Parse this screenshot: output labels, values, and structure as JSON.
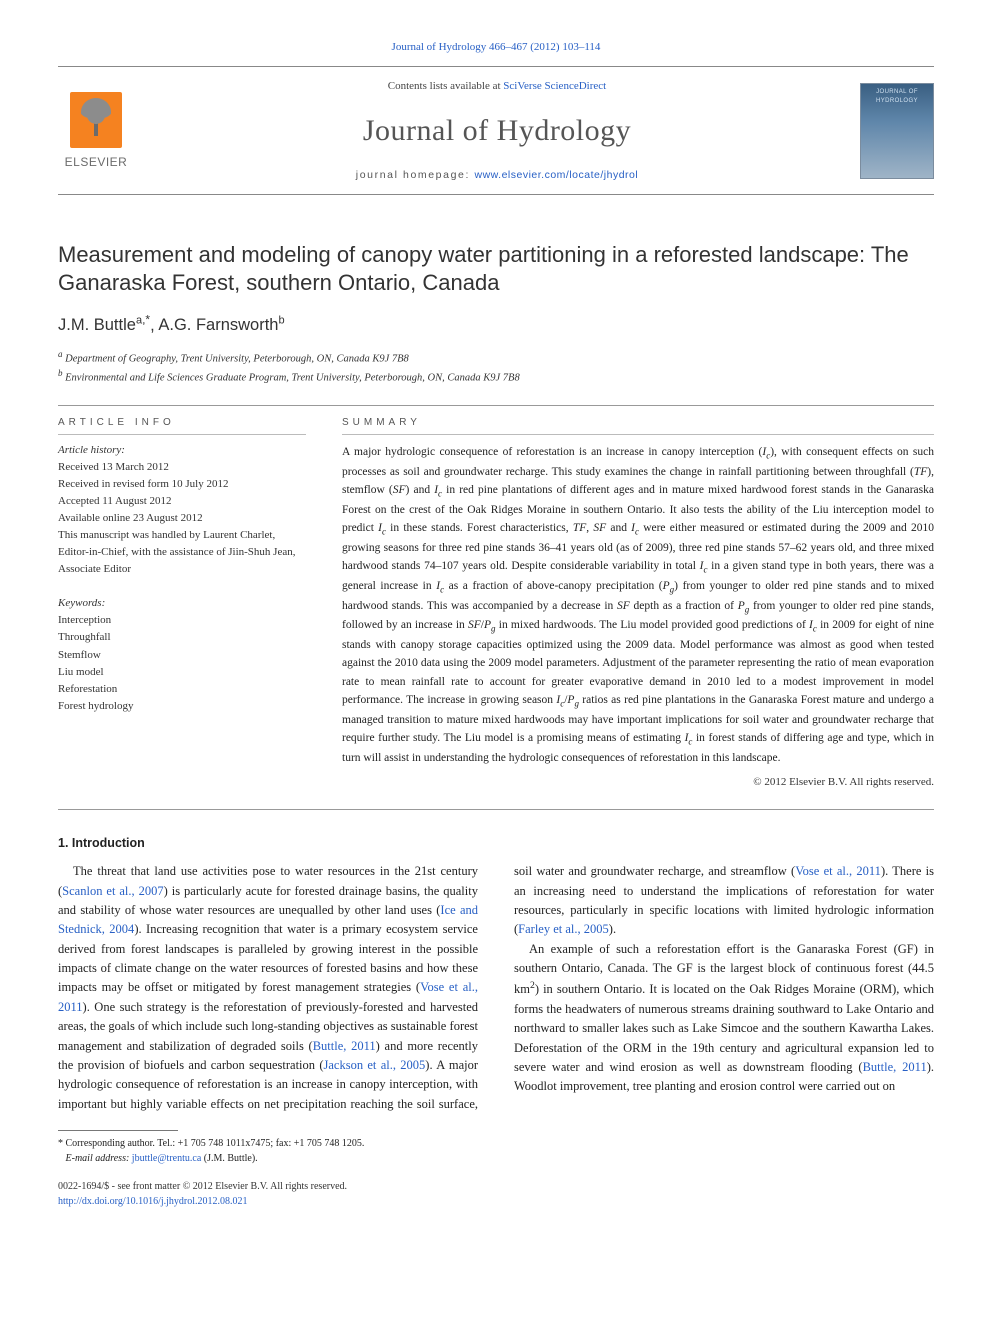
{
  "topLink": {
    "journal": "Journal of Hydrology",
    "citation": "466–467 (2012) 103–114"
  },
  "masthead": {
    "contentsPrefix": "Contents lists available at ",
    "contentsLinkText": "SciVerse ScienceDirect",
    "journalName": "Journal of Hydrology",
    "homepagePrefix": "journal homepage: ",
    "homepageUrl": "www.elsevier.com/locate/jhydrol",
    "publisherLogoWord": "ELSEVIER",
    "coverTitle": "JOURNAL OF HYDROLOGY"
  },
  "title": "Measurement and modeling of canopy water partitioning in a reforested landscape: The Ganaraska Forest, southern Ontario, Canada",
  "authors": [
    {
      "name": "J.M. Buttle",
      "aff": "a",
      "isCorresponding": true
    },
    {
      "name": "A.G. Farnsworth",
      "aff": "b",
      "isCorresponding": false
    }
  ],
  "correspondingMark": "*",
  "authorSeparator": ", ",
  "affiliations": [
    {
      "sup": "a",
      "text": "Department of Geography, Trent University, Peterborough, ON, Canada K9J 7B8"
    },
    {
      "sup": "b",
      "text": "Environmental and Life Sciences Graduate Program, Trent University, Peterborough, ON, Canada K9J 7B8"
    }
  ],
  "info": {
    "head": "ARTICLE INFO",
    "historyHead": "Article history:",
    "history": "Received 13 March 2012\nReceived in revised form 10 July 2012\nAccepted 11 August 2012\nAvailable online 23 August 2012\nThis manuscript was handled by Laurent Charlet, Editor-in-Chief, with the assistance of Jiin-Shuh Jean, Associate Editor",
    "kwHead": "Keywords:",
    "keywords": "Interception\nThroughfall\nStemflow\nLiu model\nReforestation\nForest hydrology"
  },
  "summary": {
    "head": "SUMMARY",
    "text": "A major hydrologic consequence of reforestation is an increase in canopy interception (I_c), with consequent effects on such processes as soil and groundwater recharge. This study examines the change in rainfall partitioning between throughfall (TF), stemflow (SF) and I_c in red pine plantations of different ages and in mature mixed hardwood forest stands in the Ganaraska Forest on the crest of the Oak Ridges Moraine in southern Ontario. It also tests the ability of the Liu interception model to predict I_c in these stands. Forest characteristics, TF, SF and I_c were either measured or estimated during the 2009 and 2010 growing seasons for three red pine stands 36–41 years old (as of 2009), three red pine stands 57–62 years old, and three mixed hardwood stands 74–107 years old. Despite considerable variability in total I_c in a given stand type in both years, there was a general increase in I_c as a fraction of above-canopy precipitation (P_g) from younger to older red pine stands and to mixed hardwood stands. This was accompanied by a decrease in SF depth as a fraction of P_g from younger to older red pine stands, followed by an increase in SF/P_g in mixed hardwoods. The Liu model provided good predictions of I_c in 2009 for eight of nine stands with canopy storage capacities optimized using the 2009 data. Model performance was almost as good when tested against the 2010 data using the 2009 model parameters. Adjustment of the parameter representing the ratio of mean evaporation rate to mean rainfall rate to account for greater evaporative demand in 2010 led to a modest improvement in model performance. The increase in growing season I_c/P_g ratios as red pine plantations in the Ganaraska Forest mature and undergo a managed transition to mature mixed hardwoods may have important implications for soil water and groundwater recharge that require further study. The Liu model is a promising means of estimating I_c in forest stands of differing age and type, which in turn will assist in understanding the hydrologic consequences of reforestation in this landscape.",
    "copyright": "© 2012 Elsevier B.V. All rights reserved."
  },
  "section1": {
    "head": "1. Introduction",
    "para1": "The threat that land use activities pose to water resources in the 21st century (",
    "ref1": "Scanlon et al., 2007",
    "para2": ") is particularly acute for forested drainage basins, the quality and stability of whose water resources are unequalled by other land uses (",
    "ref2": "Ice and Stednick, 2004",
    "para3": "). Increasing recognition that water is a primary ecosystem service derived from forest landscapes is paralleled by growing interest in the possible impacts of climate change on the water resources of forested basins and how these impacts may be offset or mitigated by forest management strategies (",
    "ref3": "Vose et al., 2011",
    "para4": "). One such strategy is the reforestation of previously-forested and harvested areas, the goals of which include such long-standing objectives as sustainable forest management and stabilization of degraded soils (",
    "ref4": "Buttle, 2011",
    "para5": ") and more recently the provision of biofuels and carbon sequestration (",
    "ref5": "Jackson et al., 2005",
    "para6": "). A major hydrologic consequence of reforestation is an increase in canopy interception, with important but highly variable effects on net precipitation reaching the soil surface, soil water and groundwater recharge, and streamflow (",
    "ref6": "Vose et al., 2011",
    "para7": "). There is an increasing need to understand the implications of reforestation for water resources, particularly in specific locations with limited hydrologic information (",
    "ref7": "Farley et al., 2005",
    "para8": ").",
    "para9": "An example of such a reforestation effort is the Ganaraska Forest (GF) in southern Ontario, Canada. The GF is the largest block of continuous forest (44.5 km",
    "sup2": "2",
    "para10": ") in southern Ontario. It is located on the Oak Ridges Moraine (ORM), which forms the headwaters of numerous streams draining southward to Lake Ontario and northward to smaller lakes such as Lake Simcoe and the southern Kawartha Lakes. Deforestation of the ORM in the 19th century and agricultural expansion led to severe water and wind erosion as well as downstream flooding (",
    "ref8": "Buttle, 2011",
    "para11": "). Woodlot improvement, tree planting and erosion control were carried out on"
  },
  "footnotes": {
    "mark": "*",
    "line1": "Corresponding author. Tel.: +1 705 748 1011x7475; fax: +1 705 748 1205.",
    "emailLabel": "E-mail address: ",
    "email": "jbuttle@trentu.ca",
    "emailWho": " (J.M. Buttle)."
  },
  "bottom": {
    "left1": "0022-1694/$ - see front matter © 2012 Elsevier B.V. All rights reserved.",
    "doiUrl": "http://dx.doi.org/10.1016/j.jhydrol.2012.08.021"
  },
  "colors": {
    "link": "#2860c5",
    "rule": "#999999",
    "text": "#222222",
    "orange": "#f58220",
    "coverTop": "#3a5f82"
  }
}
